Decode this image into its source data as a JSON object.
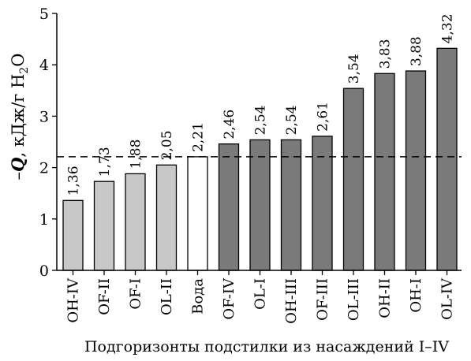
{
  "chart_data": {
    "type": "bar",
    "categories": [
      "OH-IV",
      "OF-II",
      "OF-I",
      "OL-II",
      "Вода",
      "OF-IV",
      "OL-I",
      "OH-III",
      "OF-III",
      "OL-III",
      "OH-II",
      "OH-I",
      "OL-IV"
    ],
    "values": [
      1.36,
      1.73,
      1.88,
      2.05,
      2.21,
      2.46,
      2.54,
      2.54,
      2.61,
      3.54,
      3.83,
      3.88,
      4.32
    ],
    "value_labels": [
      "1,36",
      "1,73",
      "1,88",
      "2,05",
      "2,21",
      "2,46",
      "2,54",
      "2,54",
      "2,61",
      "3,54",
      "3,83",
      "3,88",
      "4,32"
    ],
    "bar_fills": [
      "#c8c8c8",
      "#c8c8c8",
      "#c8c8c8",
      "#c8c8c8",
      "#ffffff",
      "#7a7a7a",
      "#7a7a7a",
      "#7a7a7a",
      "#7a7a7a",
      "#7a7a7a",
      "#7a7a7a",
      "#7a7a7a",
      "#7a7a7a"
    ],
    "ylabel_prefix": "–",
    "ylabel_q": "Q",
    "ylabel_main": ", кДж/г H",
    "ylabel_sub": "2",
    "ylabel_end": "O",
    "xlabel": "Подгоризонты подстилки из насаждений I–IV",
    "ylim": [
      0,
      5
    ],
    "yticks": [
      0,
      1,
      2,
      3,
      4,
      5
    ],
    "ytick_labels": [
      "0",
      "1",
      "2",
      "3",
      "4",
      "5"
    ],
    "reference_line": 2.21,
    "grid": false
  }
}
